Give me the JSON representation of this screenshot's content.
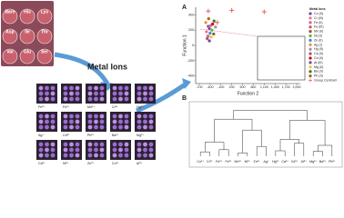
{
  "plate": {
    "labels": [
      "Bare",
      "His",
      "Lys",
      "Asp",
      "Ile",
      "Thr",
      "Val",
      "Glu",
      "Ser"
    ]
  },
  "arrow_label": "Metal Ions",
  "metal_grid": {
    "labels": [
      "Fe³⁺",
      "Fe²⁺",
      "Mn²⁺",
      "Cr³⁺",
      "Hg²⁺",
      "Ag⁺",
      "Cd²⁺",
      "Pb²⁺",
      "Ba²⁺",
      "Mg²⁺",
      "Ca²⁺",
      "Ni²⁺",
      "Zn²⁺",
      "Cu²⁺",
      "Al³⁺"
    ]
  },
  "chart_data": {
    "type": "scatter",
    "panel_label": "A",
    "x_label": "Function 2",
    "y_label": "Function 1",
    "legend_title": "Metal Ions",
    "legend": "right",
    "xlim": [
      -800,
      2100
    ],
    "ylim": [
      -500,
      500
    ],
    "xticks": [
      -700,
      -400,
      -100,
      200,
      500,
      800,
      {
        "value": 1100,
        "label": "1,100"
      },
      {
        "value": 1400,
        "label": "1,400"
      },
      {
        "value": 1700,
        "label": "1,700"
      },
      {
        "value": 2000,
        "label": "2,000"
      }
    ],
    "yticks": [
      400,
      200,
      0,
      -200,
      -400
    ],
    "series": [
      {
        "name": "Cu (II)",
        "color": "#7b3f9e",
        "x": [
          -450,
          -420
        ],
        "values": [
          250,
          220
        ]
      },
      {
        "name": "Cr (III)",
        "color": "#e07b91",
        "x": [
          -500
        ],
        "values": [
          180
        ]
      },
      {
        "name": "Fe (II)",
        "color": "#d95a8c",
        "x": [
          -380
        ],
        "values": [
          260
        ]
      },
      {
        "name": "Fe (III)",
        "color": "#c94f6d",
        "x": [
          -460
        ],
        "values": [
          120
        ]
      },
      {
        "name": "Mn (II)",
        "color": "#8b5a2b",
        "x": [
          -300
        ],
        "values": [
          150
        ]
      },
      {
        "name": "Ni (II)",
        "color": "#6aa84f",
        "x": [
          -350
        ],
        "values": [
          200
        ]
      },
      {
        "name": "Zn (II)",
        "color": "#3d85c6",
        "x": [
          -400
        ],
        "values": [
          160
        ]
      },
      {
        "name": "Ag (I)",
        "color": "#e69138",
        "x": [
          -520
        ],
        "values": [
          300
        ]
      },
      {
        "name": "Hg (II)",
        "color": "#999999",
        "x": [
          -250
        ],
        "values": [
          240
        ]
      },
      {
        "name": "Ca (II)",
        "color": "#a64d79",
        "x": [
          -480
        ],
        "values": [
          90
        ]
      },
      {
        "name": "Cd (II)",
        "color": "#cc0000",
        "x": [
          -330
        ],
        "values": [
          280
        ]
      },
      {
        "name": "Al (III)",
        "color": "#674ea7",
        "x": [
          -420
        ],
        "values": [
          60
        ]
      },
      {
        "name": "Mg (II)",
        "color": "#f1c232",
        "x": [
          -370
        ],
        "values": [
          110
        ]
      },
      {
        "name": "Ba (II)",
        "color": "#38761d",
        "x": [
          -290
        ],
        "values": [
          320
        ]
      },
      {
        "name": "Pb (II)",
        "color": "#b45f06",
        "x": [
          -440
        ],
        "values": [
          350
        ]
      },
      {
        "name": "Group Centroid",
        "color": "#e06666",
        "marker": "cross",
        "x": [
          -450,
          200,
          1100,
          -200
        ],
        "values": [
          450,
          460,
          440,
          300
        ]
      }
    ]
  },
  "dendrogram": {
    "panel_label": "B",
    "labels": [
      "Cu²⁺",
      "Cr³⁺",
      "Fe²⁺",
      "Fe³⁺",
      "Mn²⁺",
      "Ni²⁺",
      "Zn²⁺",
      "Ag⁺",
      "Hg²⁺",
      "Ca²⁺",
      "Cd²⁺",
      "Al³⁺",
      "Mg²⁺",
      "Ba²⁺",
      "Pb²⁺"
    ]
  }
}
